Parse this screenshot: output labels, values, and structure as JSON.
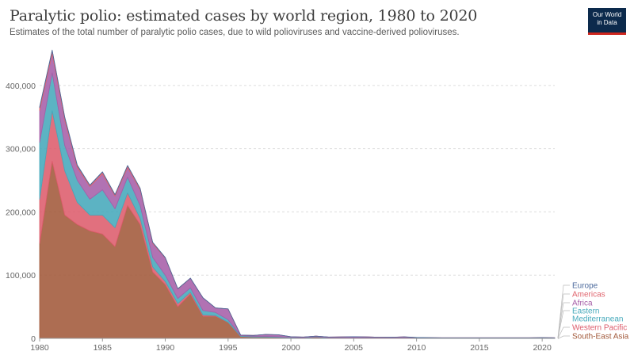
{
  "header": {
    "title": "Paralytic polio: estimated cases by world region, 1980 to 2020",
    "subtitle": "Estimates of the total number of paralytic polio cases, due to wild polioviruses and vaccine-derived polioviruses.",
    "logo_line1": "Our World",
    "logo_line2": "in Data"
  },
  "colors": {
    "south_east_asia": "#a2593a",
    "western_pacific": "#dd5c6c",
    "eastern_mediterranean": "#45a9bb",
    "africa": "#a65ea8",
    "americas": "#e0656e",
    "europe": "#4c6a9c",
    "gridline": "#dddddd",
    "axis": "#999999"
  },
  "chart_data": {
    "type": "area",
    "stacked": true,
    "title": "Paralytic polio: estimated cases by world region, 1980 to 2020",
    "xlabel": "",
    "ylabel": "",
    "xlim": [
      1980,
      2021
    ],
    "ylim": [
      0,
      460000
    ],
    "grid": "horizontal dotted",
    "legend_placement": "right",
    "x": [
      1980,
      1981,
      1982,
      1983,
      1984,
      1985,
      1986,
      1987,
      1988,
      1989,
      1990,
      1991,
      1992,
      1993,
      1994,
      1995,
      1996,
      1997,
      1998,
      1999,
      2000,
      2001,
      2002,
      2003,
      2004,
      2005,
      2006,
      2007,
      2008,
      2009,
      2010,
      2011,
      2012,
      2013,
      2014,
      2015,
      2016,
      2017,
      2018,
      2019,
      2020,
      2021
    ],
    "x_ticks": [
      "1980",
      "1985",
      "1990",
      "1995",
      "2000",
      "2005",
      "2010",
      "2015",
      "2020"
    ],
    "x_tick_values": [
      1980,
      1985,
      1990,
      1995,
      2000,
      2005,
      2010,
      2015,
      2020
    ],
    "y_ticks": [
      "0",
      "100,000",
      "200,000",
      "300,000",
      "400,000"
    ],
    "y_tick_values": [
      0,
      100000,
      200000,
      300000,
      400000
    ],
    "series": [
      {
        "name": "South-East Asia",
        "color": "#a2593a",
        "values": [
          150000,
          280000,
          195000,
          180000,
          170000,
          165000,
          145000,
          210000,
          180000,
          105000,
          85000,
          50000,
          70000,
          35000,
          35000,
          25000,
          3000,
          2000,
          2000,
          1500,
          1000,
          500,
          2000,
          500,
          200,
          500,
          500,
          300,
          200,
          300,
          100,
          50,
          0,
          0,
          0,
          0,
          0,
          0,
          0,
          0,
          0,
          0
        ]
      },
      {
        "name": "Western Pacific",
        "color": "#dd5c6c",
        "values": [
          70000,
          80000,
          70000,
          35000,
          25000,
          30000,
          30000,
          20000,
          10000,
          8000,
          5000,
          5000,
          3000,
          2000,
          1000,
          500,
          200,
          100,
          100,
          100,
          50,
          50,
          50,
          50,
          50,
          50,
          50,
          50,
          50,
          50,
          50,
          50,
          50,
          50,
          50,
          50,
          50,
          50,
          50,
          50,
          50,
          50
        ]
      },
      {
        "name": "Eastern Mediterranean",
        "color": "#45a9bb",
        "values": [
          90000,
          60000,
          40000,
          35000,
          25000,
          40000,
          30000,
          25000,
          20000,
          15000,
          10000,
          8000,
          7000,
          7000,
          5000,
          4000,
          1000,
          1000,
          1000,
          1000,
          500,
          500,
          500,
          500,
          500,
          500,
          500,
          500,
          500,
          500,
          500,
          500,
          500,
          500,
          500,
          500,
          500,
          500,
          500,
          500,
          500,
          500
        ]
      },
      {
        "name": "Africa",
        "color": "#a65ea8",
        "values": [
          50000,
          30000,
          40000,
          20000,
          20000,
          25000,
          20000,
          15000,
          25000,
          22000,
          27000,
          15000,
          15000,
          20000,
          7000,
          17000,
          1000,
          1500,
          3000,
          3000,
          1000,
          1000,
          1000,
          1000,
          1500,
          1500,
          1200,
          1000,
          1000,
          1500,
          500,
          500,
          300,
          300,
          300,
          300,
          300,
          300,
          300,
          300,
          500,
          300
        ]
      },
      {
        "name": "Americas",
        "color": "#e0656e",
        "values": [
          5000,
          5000,
          4000,
          3000,
          2000,
          3000,
          2000,
          3000,
          2000,
          1500,
          500,
          300,
          100,
          50,
          0,
          0,
          0,
          0,
          0,
          0,
          0,
          0,
          0,
          0,
          0,
          0,
          0,
          0,
          0,
          0,
          0,
          0,
          0,
          0,
          0,
          0,
          0,
          0,
          0,
          0,
          0,
          0
        ]
      },
      {
        "name": "Europe",
        "color": "#4c6a9c",
        "values": [
          1000,
          1000,
          1000,
          1000,
          500,
          500,
          500,
          500,
          500,
          500,
          500,
          300,
          300,
          300,
          200,
          200,
          100,
          100,
          100,
          100,
          50,
          50,
          50,
          50,
          50,
          50,
          50,
          50,
          50,
          50,
          400,
          50,
          50,
          50,
          50,
          50,
          50,
          50,
          50,
          50,
          50,
          50
        ]
      }
    ]
  },
  "legend": {
    "items": [
      {
        "label": "Europe",
        "color": "#4c6a9c"
      },
      {
        "label": "Americas",
        "color": "#e0656e"
      },
      {
        "label": "Africa",
        "color": "#a65ea8"
      },
      {
        "label": "Eastern",
        "color": "#45a9bb"
      },
      {
        "label": "Mediterranean",
        "color": "#45a9bb"
      },
      {
        "label": "Western Pacific",
        "color": "#dd5c6c"
      },
      {
        "label": "South-East Asia",
        "color": "#a2593a"
      }
    ]
  }
}
